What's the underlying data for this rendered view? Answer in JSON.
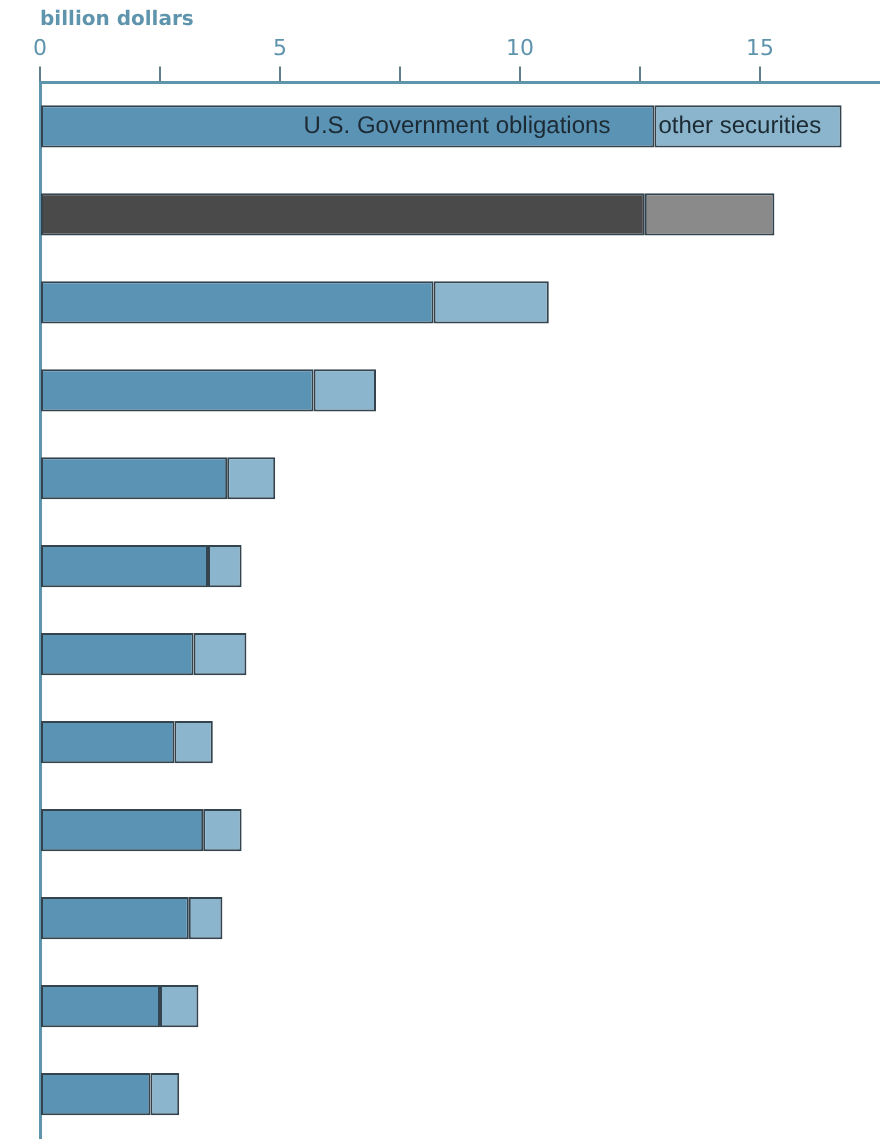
{
  "chart_data": {
    "type": "bar",
    "orientation": "horizontal",
    "stacked": true,
    "xlabel": "billion dollars",
    "categories": [
      null,
      null,
      null,
      null,
      null,
      null,
      null,
      null,
      null,
      null,
      null,
      null
    ],
    "series": [
      {
        "name": "U.S. Government obligations",
        "colors": [
          "#5b93b5",
          "#4a4a4a",
          "#5b93b5",
          "#5b93b5",
          "#5b93b5",
          "#5b93b5",
          "#5b93b5",
          "#5b93b5",
          "#5b93b5",
          "#5b93b5",
          "#5b93b5",
          "#5b93b5"
        ],
        "values": [
          12.8,
          12.6,
          8.2,
          5.7,
          3.9,
          3.5,
          3.2,
          2.8,
          3.4,
          3.1,
          2.5,
          2.3
        ]
      },
      {
        "name": "other securities",
        "colors": [
          "#8ab5cc",
          "#8a8a8a",
          "#8ab5cc",
          "#8ab5cc",
          "#8ab5cc",
          "#8ab5cc",
          "#8ab5cc",
          "#8ab5cc",
          "#8ab5cc",
          "#8ab5cc",
          "#8ab5cc",
          "#8ab5cc"
        ],
        "values": [
          3.9,
          2.7,
          2.4,
          1.3,
          1.0,
          0.7,
          1.1,
          0.8,
          0.8,
          0.7,
          0.8,
          0.6
        ]
      }
    ],
    "xlim": [
      0,
      17.5
    ],
    "xticks": [
      0,
      {
        "value": 2.5,
        "label": null
      },
      5,
      {
        "value": 7.5,
        "label": null
      },
      10,
      {
        "value": 12.5,
        "label": null
      },
      15
    ],
    "grid": false,
    "legend": false
  }
}
